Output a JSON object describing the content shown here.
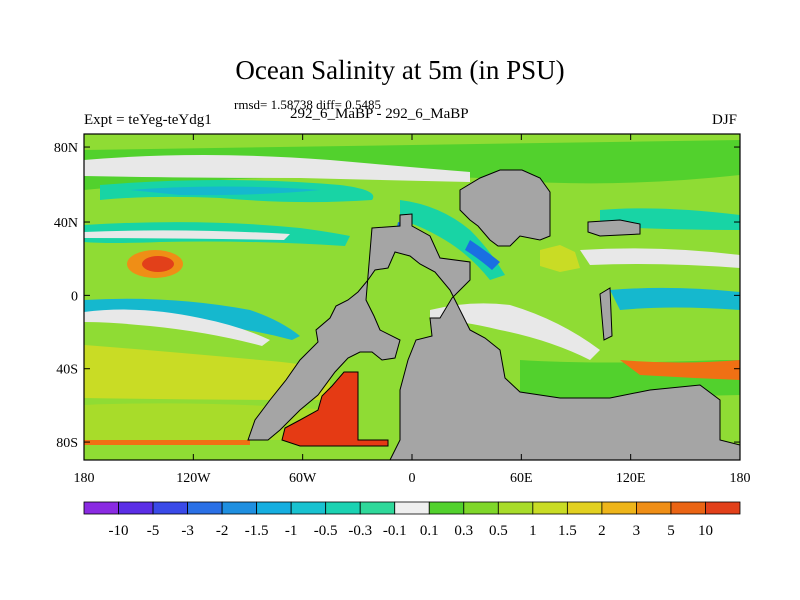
{
  "title": "Ocean Salinity at 5m (in PSU)",
  "stats": "rmsd= 1.58738 diff= 0.5485",
  "left_label": "Expt = teYeg-teYdg1",
  "center_label": "292_6_MaBP - 292_6_MaBP",
  "right_label": "DJF",
  "map": {
    "x_ticks": [
      "180",
      "120W",
      "60W",
      "0",
      "60E",
      "120E",
      "180"
    ],
    "y_ticks": [
      "80N",
      "40N",
      "0",
      "40S",
      "80S"
    ],
    "colors": {
      "land": "#a5a5a5",
      "near_zero": "#e8e8e8",
      "lime": "#8fdc34",
      "green": "#52d12d",
      "teal": "#18d4a5",
      "cyan": "#15b8ce",
      "blue": "#1a6fe2",
      "orange": "#f07014",
      "red": "#e53a14"
    }
  },
  "colorbar": {
    "labels": [
      "-10",
      "-5",
      "-3",
      "-2",
      "-1.5",
      "-1",
      "-0.5",
      "-0.3",
      "-0.1",
      "0.1",
      "0.3",
      "0.5",
      "1",
      "1.5",
      "2",
      "3",
      "5",
      "10"
    ],
    "colors": [
      "#8a2be2",
      "#5b2ee6",
      "#3a4ae8",
      "#2a70e6",
      "#1f8fe0",
      "#15aee0",
      "#18c2d0",
      "#1bd2b2",
      "#2fd89a",
      "#efefef",
      "#52d12d",
      "#7fd72a",
      "#a8dc2a",
      "#c9dc25",
      "#e2d020",
      "#eeb51a",
      "#ef8e16",
      "#ea6414",
      "#e2401a"
    ]
  }
}
